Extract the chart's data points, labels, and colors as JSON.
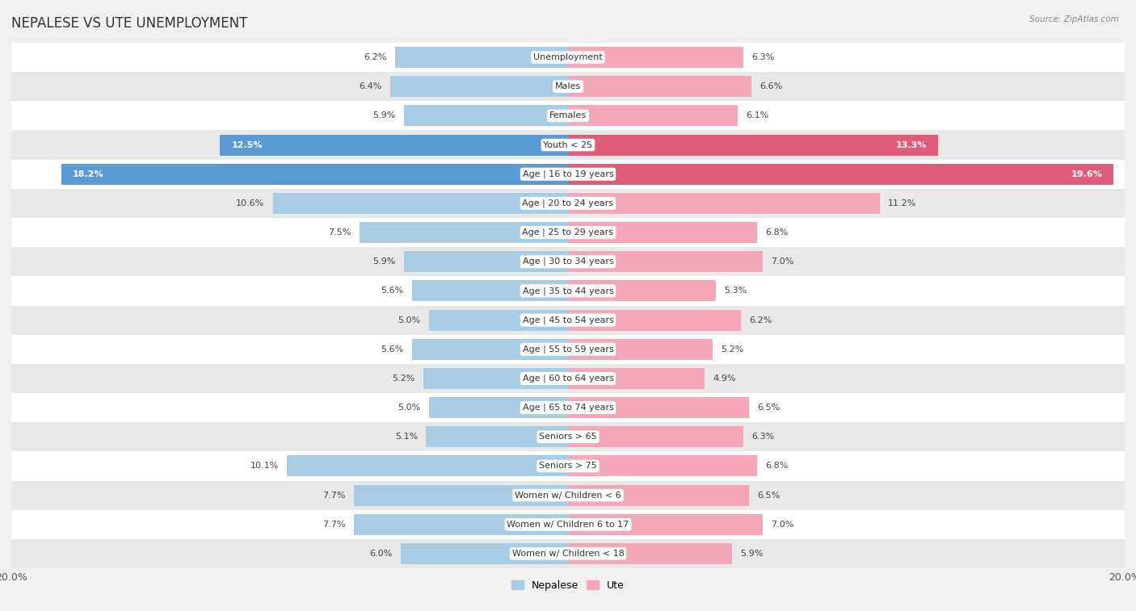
{
  "title": "NEPALESE VS UTE UNEMPLOYMENT",
  "source": "Source: ZipAtlas.com",
  "categories": [
    "Unemployment",
    "Males",
    "Females",
    "Youth < 25",
    "Age | 16 to 19 years",
    "Age | 20 to 24 years",
    "Age | 25 to 29 years",
    "Age | 30 to 34 years",
    "Age | 35 to 44 years",
    "Age | 45 to 54 years",
    "Age | 55 to 59 years",
    "Age | 60 to 64 years",
    "Age | 65 to 74 years",
    "Seniors > 65",
    "Seniors > 75",
    "Women w/ Children < 6",
    "Women w/ Children 6 to 17",
    "Women w/ Children < 18"
  ],
  "nepalese": [
    6.2,
    6.4,
    5.9,
    12.5,
    18.2,
    10.6,
    7.5,
    5.9,
    5.6,
    5.0,
    5.6,
    5.2,
    5.0,
    5.1,
    10.1,
    7.7,
    7.7,
    6.0
  ],
  "ute": [
    6.3,
    6.6,
    6.1,
    13.3,
    19.6,
    11.2,
    6.8,
    7.0,
    5.3,
    6.2,
    5.2,
    4.9,
    6.5,
    6.3,
    6.8,
    6.5,
    7.0,
    5.9
  ],
  "nepalese_color_default": "#a8cce4",
  "nepalese_color_highlight": "#5b9bd5",
  "ute_color_default": "#f4a7b9",
  "ute_color_highlight": "#e05c7a",
  "highlight_rows": [
    3,
    4
  ],
  "axis_limit": 20.0,
  "bar_height": 0.72,
  "background_color": "#f0f0f0",
  "row_bg_light": "#ffffff",
  "row_bg_dark": "#e8e8e8",
  "label_fontsize": 8.5,
  "title_fontsize": 12,
  "value_fontsize": 8.0
}
